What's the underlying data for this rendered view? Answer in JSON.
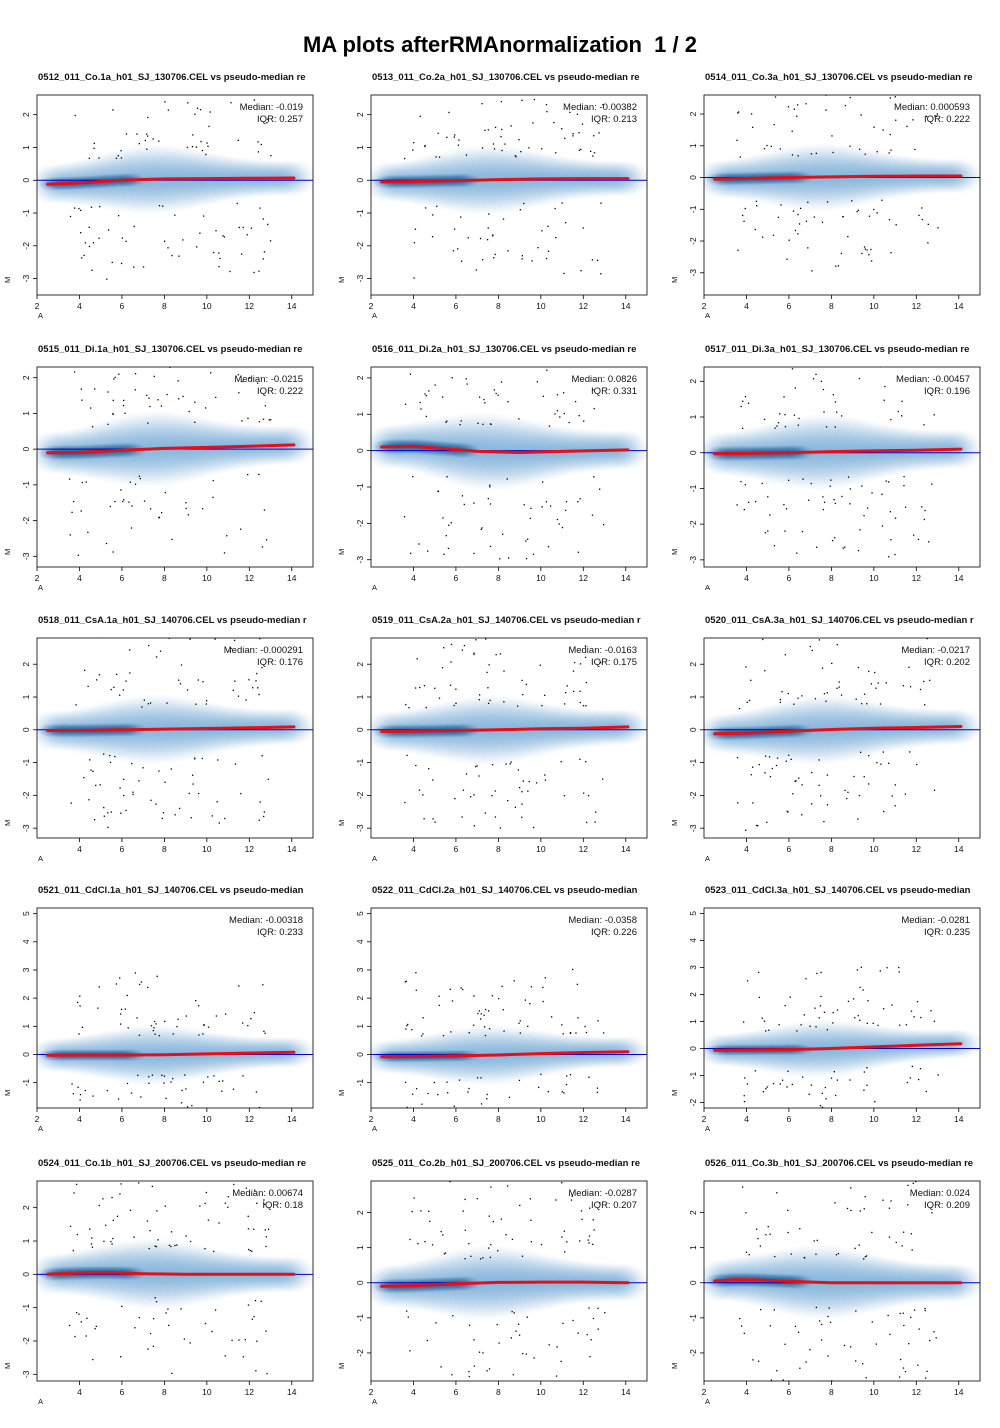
{
  "title": "MA plots afterRMAnormalization  1 / 2",
  "colors": {
    "density": "#2f7fc1",
    "dense_core": "#0b4a8c",
    "loess": "#e2101a",
    "hline": "#0000c8",
    "points": "#000000"
  },
  "chart_data": [
    {
      "type": "scatter",
      "title": "0512_011_Co.1a_h01_SJ_130706.CEL vs pseudo-median re",
      "xlabel": "A",
      "ylabel": "M",
      "xlim": [
        2,
        15
      ],
      "ylim": [
        -3.5,
        2.6
      ],
      "xticks": [
        2,
        4,
        6,
        8,
        10,
        12,
        14
      ],
      "yticks": [
        -3,
        -2,
        -1,
        0,
        1,
        2
      ],
      "median": "Median: -0.019",
      "iqr": "IQR: 0.257",
      "trend_x": [
        2.5,
        4,
        6,
        8,
        10,
        12,
        14.1
      ],
      "trend_y": [
        -0.12,
        -0.08,
        0.0,
        0.04,
        0.05,
        0.06,
        0.07
      ]
    },
    {
      "type": "scatter",
      "title": "0513_011_Co.2a_h01_SJ_130706.CEL vs pseudo-median re",
      "xlabel": "A",
      "ylabel": "M",
      "xlim": [
        2,
        15
      ],
      "ylim": [
        -3.5,
        2.6
      ],
      "xticks": [
        2,
        4,
        6,
        8,
        10,
        12,
        14
      ],
      "yticks": [
        -3,
        -2,
        -1,
        0,
        1,
        2
      ],
      "median": "Median: -0.00382",
      "iqr": "IQR: 0.213",
      "trend_x": [
        2.5,
        4,
        6,
        8,
        10,
        12,
        14.1
      ],
      "trend_y": [
        -0.05,
        -0.04,
        -0.01,
        0.02,
        0.04,
        0.05,
        0.05
      ]
    },
    {
      "type": "scatter",
      "title": "0514_011_Co.3a_h01_SJ_130706.CEL vs pseudo-median re",
      "xlabel": "A",
      "ylabel": "M",
      "xlim": [
        2,
        15
      ],
      "ylim": [
        -3.7,
        2.6
      ],
      "xticks": [
        2,
        4,
        6,
        8,
        10,
        12,
        14
      ],
      "yticks": [
        -3,
        -2,
        -1,
        0,
        1,
        2
      ],
      "median": "Median: 0.000593",
      "iqr": "IQR: 0.222",
      "trend_x": [
        2.5,
        4,
        6,
        8,
        10,
        12,
        14.1
      ],
      "trend_y": [
        -0.05,
        -0.03,
        0.0,
        0.02,
        0.04,
        0.05,
        0.05
      ]
    },
    {
      "type": "scatter",
      "title": "0515_011_Di.1a_h01_SJ_130706.CEL vs pseudo-median re",
      "xlabel": "A",
      "ylabel": "M",
      "xlim": [
        2,
        15
      ],
      "ylim": [
        -3.3,
        2.3
      ],
      "xticks": [
        2,
        4,
        6,
        8,
        10,
        12,
        14
      ],
      "yticks": [
        -3,
        -2,
        -1,
        0,
        1,
        2
      ],
      "median": "Median: -0.0215",
      "iqr": "IQR: 0.222",
      "trend_x": [
        2.5,
        4,
        6,
        8,
        10,
        12,
        14.1
      ],
      "trend_y": [
        -0.1,
        -0.09,
        -0.03,
        0.02,
        0.05,
        0.08,
        0.12
      ]
    },
    {
      "type": "scatter",
      "title": "0516_011_Di.2a_h01_SJ_130706.CEL vs pseudo-median re",
      "xlabel": "A",
      "ylabel": "M",
      "xlim": [
        2,
        15
      ],
      "ylim": [
        -3.2,
        2.3
      ],
      "xticks": [
        4,
        6,
        8,
        10,
        12,
        14
      ],
      "yticks": [
        -3,
        -2,
        -1,
        0,
        1,
        2
      ],
      "median": "Median: 0.0826",
      "iqr": "IQR: 0.331",
      "trend_x": [
        2.5,
        4,
        5.5,
        7,
        9,
        11,
        14.1
      ],
      "trend_y": [
        0.1,
        0.12,
        0.05,
        -0.02,
        -0.05,
        -0.02,
        0.02
      ]
    },
    {
      "type": "scatter",
      "title": "0517_011_Di.3a_h01_SJ_130706.CEL vs pseudo-median re",
      "xlabel": "A",
      "ylabel": "M",
      "xlim": [
        2,
        15
      ],
      "ylim": [
        -3.2,
        2.4
      ],
      "xticks": [
        4,
        6,
        8,
        10,
        12,
        14
      ],
      "yticks": [
        -3,
        -2,
        -1,
        0,
        1,
        2
      ],
      "median": "Median: -0.00457",
      "iqr": "IQR: 0.196",
      "trend_x": [
        2.5,
        4,
        6,
        8,
        10,
        12,
        14.1
      ],
      "trend_y": [
        -0.03,
        -0.02,
        0.0,
        0.03,
        0.05,
        0.07,
        0.1
      ]
    },
    {
      "type": "scatter",
      "title": "0518_011_CsA.1a_h01_SJ_140706.CEL vs pseudo-median r",
      "xlabel": "A",
      "ylabel": "M",
      "xlim": [
        2,
        15
      ],
      "ylim": [
        -3.3,
        2.8
      ],
      "xticks": [
        4,
        6,
        8,
        10,
        12,
        14
      ],
      "yticks": [
        -3,
        -2,
        -1,
        0,
        1,
        2
      ],
      "median": "Median: -0.000291",
      "iqr": "IQR: 0.176",
      "trend_x": [
        2.5,
        4,
        6,
        8,
        10,
        12,
        14.1
      ],
      "trend_y": [
        -0.02,
        -0.02,
        0.0,
        0.02,
        0.04,
        0.06,
        0.09
      ]
    },
    {
      "type": "scatter",
      "title": "0519_011_CsA.2a_h01_SJ_140706.CEL vs pseudo-median r",
      "xlabel": "A",
      "ylabel": "M",
      "xlim": [
        2,
        15
      ],
      "ylim": [
        -3.3,
        2.8
      ],
      "xticks": [
        4,
        6,
        8,
        10,
        12,
        14
      ],
      "yticks": [
        -3,
        -2,
        -1,
        0,
        1,
        2
      ],
      "median": "Median: -0.0163",
      "iqr": "IQR: 0.175",
      "trend_x": [
        2.5,
        4,
        6,
        8,
        10,
        12,
        14.1
      ],
      "trend_y": [
        -0.05,
        -0.04,
        -0.02,
        0.0,
        0.03,
        0.05,
        0.09
      ]
    },
    {
      "type": "scatter",
      "title": "0520_011_CsA.3a_h01_SJ_140706.CEL vs pseudo-median r",
      "xlabel": "A",
      "ylabel": "M",
      "xlim": [
        2,
        15
      ],
      "ylim": [
        -3.3,
        2.8
      ],
      "xticks": [
        4,
        6,
        8,
        10,
        12,
        14
      ],
      "yticks": [
        -3,
        -2,
        -1,
        0,
        1,
        2
      ],
      "median": "Median: -0.0217",
      "iqr": "IQR: 0.202",
      "trend_x": [
        2.5,
        4,
        6,
        8,
        10,
        12,
        14.1
      ],
      "trend_y": [
        -0.12,
        -0.1,
        -0.04,
        0.01,
        0.05,
        0.07,
        0.1
      ]
    },
    {
      "type": "scatter",
      "title": "0521_011_CdCl.1a_h01_SJ_140706.CEL vs pseudo-median",
      "xlabel": "A",
      "ylabel": "M",
      "xlim": [
        2,
        15
      ],
      "ylim": [
        -1.9,
        5.2
      ],
      "xticks": [
        2,
        4,
        6,
        8,
        10,
        12,
        14
      ],
      "yticks": [
        -1,
        0,
        1,
        2,
        3,
        4,
        5
      ],
      "median": "Median: -0.00318",
      "iqr": "IQR: 0.233",
      "trend_x": [
        2.5,
        4,
        6,
        8,
        10,
        12,
        14.1
      ],
      "trend_y": [
        -0.03,
        -0.02,
        -0.02,
        -0.01,
        0.02,
        0.05,
        0.08
      ]
    },
    {
      "type": "scatter",
      "title": "0522_011_CdCl.2a_h01_SJ_140706.CEL vs pseudo-median",
      "xlabel": "A",
      "ylabel": "M",
      "xlim": [
        2,
        15
      ],
      "ylim": [
        -1.9,
        5.2
      ],
      "xticks": [
        2,
        4,
        6,
        8,
        10,
        12,
        14
      ],
      "yticks": [
        -1,
        0,
        1,
        2,
        3,
        4,
        5
      ],
      "median": "Median: -0.0358",
      "iqr": "IQR: 0.226",
      "trend_x": [
        2.5,
        4,
        6,
        8,
        10,
        12,
        14.1
      ],
      "trend_y": [
        -0.08,
        -0.07,
        -0.05,
        -0.02,
        0.03,
        0.07,
        0.1
      ]
    },
    {
      "type": "scatter",
      "title": "0523_011_CdCl.3a_h01_SJ_140706.CEL vs pseudo-median",
      "xlabel": "A",
      "ylabel": "M",
      "xlim": [
        2,
        15
      ],
      "ylim": [
        -2.2,
        5.2
      ],
      "xticks": [
        2,
        4,
        6,
        8,
        10,
        12,
        14
      ],
      "yticks": [
        -2,
        -1,
        0,
        1,
        2,
        3,
        4,
        5
      ],
      "median": "Median: -0.0281",
      "iqr": "IQR: 0.235",
      "trend_x": [
        2.5,
        4,
        6,
        8,
        10,
        12,
        14.1
      ],
      "trend_y": [
        -0.06,
        -0.05,
        -0.04,
        0.0,
        0.06,
        0.12,
        0.18
      ]
    },
    {
      "type": "scatter",
      "title": "0524_011_Co.1b_h01_SJ_200706.CEL vs pseudo-median re",
      "xlabel": "A",
      "ylabel": "M",
      "xlim": [
        2,
        15
      ],
      "ylim": [
        -3.2,
        2.8
      ],
      "xticks": [
        4,
        6,
        8,
        10,
        12,
        14
      ],
      "yticks": [
        -3,
        -2,
        -1,
        0,
        1,
        2
      ],
      "median": "Median: 0.00674",
      "iqr": "IQR: 0.18",
      "trend_x": [
        2.5,
        4,
        5.5,
        7,
        9,
        11,
        14.1
      ],
      "trend_y": [
        0.0,
        0.04,
        0.05,
        0.02,
        0.0,
        0.0,
        0.0
      ]
    },
    {
      "type": "scatter",
      "title": "0525_011_Co.2b_h01_SJ_200706.CEL vs pseudo-median re",
      "xlabel": "A",
      "ylabel": "M",
      "xlim": [
        2,
        15
      ],
      "ylim": [
        -2.8,
        2.9
      ],
      "xticks": [
        2,
        4,
        6,
        8,
        10,
        12,
        14
      ],
      "yticks": [
        -2,
        -1,
        0,
        1,
        2
      ],
      "median": "Median: -0.0287",
      "iqr": "IQR: 0.207",
      "trend_x": [
        2.5,
        4,
        6,
        8,
        10,
        12,
        14.1
      ],
      "trend_y": [
        -0.1,
        -0.08,
        -0.03,
        0.01,
        0.02,
        0.02,
        0.0
      ]
    },
    {
      "type": "scatter",
      "title": "0526_011_Co.3b_h01_SJ_200706.CEL vs pseudo-median re",
      "xlabel": "A",
      "ylabel": "M",
      "xlim": [
        2,
        15
      ],
      "ylim": [
        -2.8,
        2.9
      ],
      "xticks": [
        2,
        4,
        6,
        8,
        10,
        12,
        14
      ],
      "yticks": [
        -2,
        -1,
        0,
        1,
        2
      ],
      "median": "Median: 0.024",
      "iqr": "IQR: 0.209",
      "trend_x": [
        2.5,
        3.5,
        4.5,
        6,
        8,
        11,
        14.1
      ],
      "trend_y": [
        0.05,
        0.09,
        0.08,
        0.04,
        0.0,
        0.0,
        0.0
      ]
    }
  ]
}
